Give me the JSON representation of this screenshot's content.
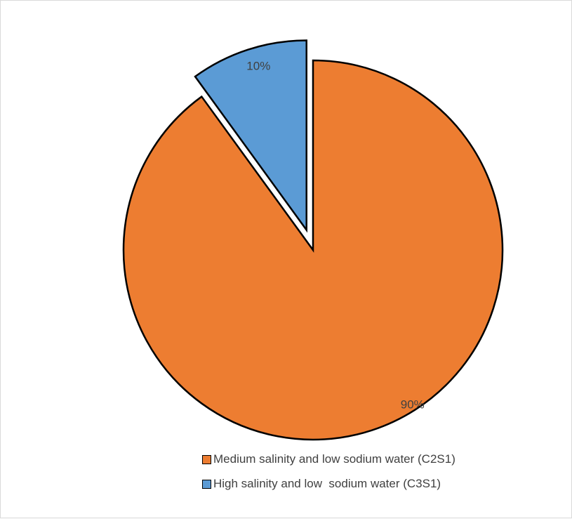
{
  "chart_data": {
    "type": "pie",
    "title": "",
    "slices": [
      {
        "label": "Medium salinity and low sodium water (C2S1)",
        "value": 90,
        "data_label": "90%",
        "color": "#ed7d31",
        "exploded": false
      },
      {
        "label": "High salinity and low  sodium water (C3S1)",
        "value": 10,
        "data_label": "10%",
        "color": "#5b9bd5",
        "exploded": true
      }
    ],
    "legend_position": "bottom",
    "start_angle": "12 o'clock",
    "direction": "clockwise"
  }
}
